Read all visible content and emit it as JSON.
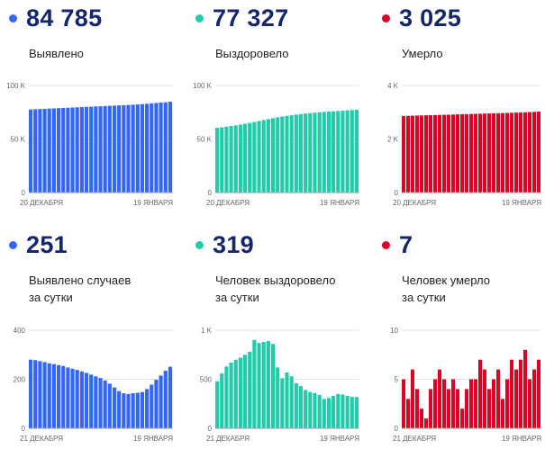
{
  "panels": [
    {
      "id": "detected-total",
      "value": "84 785",
      "label_lines": [
        "Выявлено"
      ],
      "color": "#3366ff",
      "chart_data": {
        "type": "bar",
        "y_ticks": [
          {
            "v": 0,
            "label": "0"
          },
          {
            "v": 50000,
            "label": "50 K"
          },
          {
            "v": 100000,
            "label": "100 K"
          }
        ],
        "ylim": [
          0,
          100000
        ],
        "x_start_label": "20 ДЕКАБРЯ",
        "x_end_label": "19 ЯНВАРЯ",
        "values": [
          77600,
          77800,
          78000,
          78200,
          78400,
          78600,
          78800,
          79000,
          79200,
          79400,
          79600,
          79800,
          80000,
          80200,
          80400,
          80600,
          80800,
          81000,
          81200,
          81400,
          81600,
          81800,
          82000,
          82300,
          82600,
          82900,
          83300,
          83700,
          84000,
          84300,
          84785
        ]
      }
    },
    {
      "id": "recovered-total",
      "value": "77 327",
      "label_lines": [
        "Выздоровело"
      ],
      "color": "#22ccaa",
      "chart_data": {
        "type": "bar",
        "y_ticks": [
          {
            "v": 0,
            "label": "0"
          },
          {
            "v": 50000,
            "label": "50 K"
          },
          {
            "v": 100000,
            "label": "100 K"
          }
        ],
        "ylim": [
          0,
          100000
        ],
        "x_start_label": "20 ДЕКАБРЯ",
        "x_end_label": "19 ЯНВАРЯ",
        "values": [
          60500,
          61000,
          61600,
          62200,
          62800,
          63500,
          64200,
          65000,
          65900,
          66800,
          67700,
          68600,
          69500,
          70300,
          71000,
          71600,
          72200,
          72800,
          73300,
          73800,
          74200,
          74600,
          75000,
          75300,
          75600,
          75900,
          76200,
          76500,
          76800,
          77100,
          77327
        ]
      }
    },
    {
      "id": "died-total",
      "value": "3 025",
      "label_lines": [
        "Умерло"
      ],
      "color": "#dd0022",
      "chart_data": {
        "type": "bar",
        "y_ticks": [
          {
            "v": 0,
            "label": "0"
          },
          {
            "v": 2000,
            "label": "2 K"
          },
          {
            "v": 4000,
            "label": "4 K"
          }
        ],
        "ylim": [
          0,
          4000
        ],
        "x_start_label": "20 ДЕКАБРЯ",
        "x_end_label": "19 ЯНВАРЯ",
        "values": [
          2860,
          2865,
          2870,
          2874,
          2880,
          2885,
          2890,
          2895,
          2900,
          2905,
          2909,
          2914,
          2919,
          2925,
          2930,
          2936,
          2940,
          2945,
          2950,
          2955,
          2960,
          2965,
          2970,
          2975,
          2980,
          2986,
          2992,
          2998,
          3005,
          3014,
          3025
        ]
      }
    },
    {
      "id": "detected-daily",
      "value": "251",
      "label_lines": [
        "Выявлено случаев",
        "за сутки"
      ],
      "color": "#3366ff",
      "chart_data": {
        "type": "bar",
        "y_ticks": [
          {
            "v": 0,
            "label": "0"
          },
          {
            "v": 200,
            "label": "200"
          },
          {
            "v": 400,
            "label": "400"
          }
        ],
        "ylim": [
          0,
          400
        ],
        "x_start_label": "21 ДЕКАБРЯ",
        "x_end_label": "19 ЯНВАРЯ",
        "values": [
          280,
          278,
          274,
          270,
          265,
          262,
          258,
          254,
          248,
          243,
          238,
          232,
          226,
          219,
          212,
          205,
          195,
          182,
          167,
          152,
          143,
          140,
          143,
          145,
          148,
          160,
          178,
          198,
          215,
          235,
          251
        ]
      }
    },
    {
      "id": "recovered-daily",
      "value": "319",
      "label_lines": [
        "Человек выздоровело",
        "за сутки"
      ],
      "color": "#22ccaa",
      "chart_data": {
        "type": "bar",
        "y_ticks": [
          {
            "v": 0,
            "label": "0"
          },
          {
            "v": 500,
            "label": "500"
          },
          {
            "v": 1000,
            "label": "1 K"
          }
        ],
        "ylim": [
          0,
          1000
        ],
        "x_start_label": "21 ДЕКАБРЯ",
        "x_end_label": "19 ЯНВАРЯ",
        "values": [
          480,
          560,
          630,
          670,
          700,
          720,
          750,
          780,
          900,
          870,
          880,
          890,
          860,
          620,
          510,
          570,
          530,
          460,
          430,
          390,
          370,
          360,
          340,
          300,
          310,
          330,
          350,
          345,
          330,
          320,
          319
        ]
      }
    },
    {
      "id": "died-daily",
      "value": "7",
      "label_lines": [
        "Человек умерло",
        "за сутки"
      ],
      "color": "#dd0022",
      "chart_data": {
        "type": "bar",
        "y_ticks": [
          {
            "v": 0,
            "label": "0"
          },
          {
            "v": 5,
            "label": "5"
          },
          {
            "v": 10,
            "label": "10"
          }
        ],
        "ylim": [
          0,
          10
        ],
        "x_start_label": "21 ДЕКАБРЯ",
        "x_end_label": "19 ЯНВАРЯ",
        "values": [
          5,
          3,
          6,
          4,
          2,
          1,
          4,
          5,
          6,
          5,
          4,
          5,
          4,
          2,
          4,
          5,
          5,
          7,
          6,
          4,
          5,
          6,
          3,
          5,
          7,
          6,
          7,
          8,
          5,
          6,
          7
        ]
      }
    }
  ]
}
